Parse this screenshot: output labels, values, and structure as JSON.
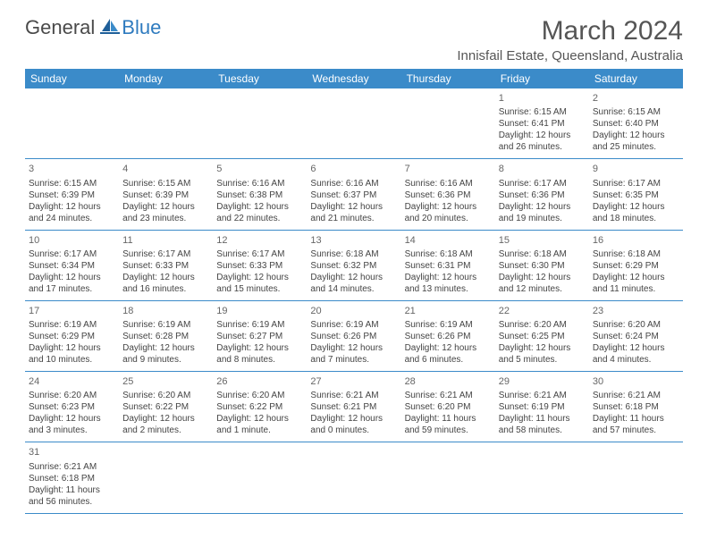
{
  "brand": {
    "general": "General",
    "blue": "Blue"
  },
  "title": "March 2024",
  "location": "Innisfail Estate, Queensland, Australia",
  "colors": {
    "header_bg": "#3b8bc9",
    "accent": "#2f7bbf"
  },
  "day_headers": [
    "Sunday",
    "Monday",
    "Tuesday",
    "Wednesday",
    "Thursday",
    "Friday",
    "Saturday"
  ],
  "weeks": [
    [
      null,
      null,
      null,
      null,
      null,
      {
        "n": "1",
        "sr": "6:15 AM",
        "ss": "6:41 PM",
        "dl": "12 hours and 26 minutes."
      },
      {
        "n": "2",
        "sr": "6:15 AM",
        "ss": "6:40 PM",
        "dl": "12 hours and 25 minutes."
      }
    ],
    [
      {
        "n": "3",
        "sr": "6:15 AM",
        "ss": "6:39 PM",
        "dl": "12 hours and 24 minutes."
      },
      {
        "n": "4",
        "sr": "6:15 AM",
        "ss": "6:39 PM",
        "dl": "12 hours and 23 minutes."
      },
      {
        "n": "5",
        "sr": "6:16 AM",
        "ss": "6:38 PM",
        "dl": "12 hours and 22 minutes."
      },
      {
        "n": "6",
        "sr": "6:16 AM",
        "ss": "6:37 PM",
        "dl": "12 hours and 21 minutes."
      },
      {
        "n": "7",
        "sr": "6:16 AM",
        "ss": "6:36 PM",
        "dl": "12 hours and 20 minutes."
      },
      {
        "n": "8",
        "sr": "6:17 AM",
        "ss": "6:36 PM",
        "dl": "12 hours and 19 minutes."
      },
      {
        "n": "9",
        "sr": "6:17 AM",
        "ss": "6:35 PM",
        "dl": "12 hours and 18 minutes."
      }
    ],
    [
      {
        "n": "10",
        "sr": "6:17 AM",
        "ss": "6:34 PM",
        "dl": "12 hours and 17 minutes."
      },
      {
        "n": "11",
        "sr": "6:17 AM",
        "ss": "6:33 PM",
        "dl": "12 hours and 16 minutes."
      },
      {
        "n": "12",
        "sr": "6:17 AM",
        "ss": "6:33 PM",
        "dl": "12 hours and 15 minutes."
      },
      {
        "n": "13",
        "sr": "6:18 AM",
        "ss": "6:32 PM",
        "dl": "12 hours and 14 minutes."
      },
      {
        "n": "14",
        "sr": "6:18 AM",
        "ss": "6:31 PM",
        "dl": "12 hours and 13 minutes."
      },
      {
        "n": "15",
        "sr": "6:18 AM",
        "ss": "6:30 PM",
        "dl": "12 hours and 12 minutes."
      },
      {
        "n": "16",
        "sr": "6:18 AM",
        "ss": "6:29 PM",
        "dl": "12 hours and 11 minutes."
      }
    ],
    [
      {
        "n": "17",
        "sr": "6:19 AM",
        "ss": "6:29 PM",
        "dl": "12 hours and 10 minutes."
      },
      {
        "n": "18",
        "sr": "6:19 AM",
        "ss": "6:28 PM",
        "dl": "12 hours and 9 minutes."
      },
      {
        "n": "19",
        "sr": "6:19 AM",
        "ss": "6:27 PM",
        "dl": "12 hours and 8 minutes."
      },
      {
        "n": "20",
        "sr": "6:19 AM",
        "ss": "6:26 PM",
        "dl": "12 hours and 7 minutes."
      },
      {
        "n": "21",
        "sr": "6:19 AM",
        "ss": "6:26 PM",
        "dl": "12 hours and 6 minutes."
      },
      {
        "n": "22",
        "sr": "6:20 AM",
        "ss": "6:25 PM",
        "dl": "12 hours and 5 minutes."
      },
      {
        "n": "23",
        "sr": "6:20 AM",
        "ss": "6:24 PM",
        "dl": "12 hours and 4 minutes."
      }
    ],
    [
      {
        "n": "24",
        "sr": "6:20 AM",
        "ss": "6:23 PM",
        "dl": "12 hours and 3 minutes."
      },
      {
        "n": "25",
        "sr": "6:20 AM",
        "ss": "6:22 PM",
        "dl": "12 hours and 2 minutes."
      },
      {
        "n": "26",
        "sr": "6:20 AM",
        "ss": "6:22 PM",
        "dl": "12 hours and 1 minute."
      },
      {
        "n": "27",
        "sr": "6:21 AM",
        "ss": "6:21 PM",
        "dl": "12 hours and 0 minutes."
      },
      {
        "n": "28",
        "sr": "6:21 AM",
        "ss": "6:20 PM",
        "dl": "11 hours and 59 minutes."
      },
      {
        "n": "29",
        "sr": "6:21 AM",
        "ss": "6:19 PM",
        "dl": "11 hours and 58 minutes."
      },
      {
        "n": "30",
        "sr": "6:21 AM",
        "ss": "6:18 PM",
        "dl": "11 hours and 57 minutes."
      }
    ],
    [
      {
        "n": "31",
        "sr": "6:21 AM",
        "ss": "6:18 PM",
        "dl": "11 hours and 56 minutes."
      },
      null,
      null,
      null,
      null,
      null,
      null
    ]
  ],
  "labels": {
    "sunrise": "Sunrise:",
    "sunset": "Sunset:",
    "daylight": "Daylight:"
  }
}
